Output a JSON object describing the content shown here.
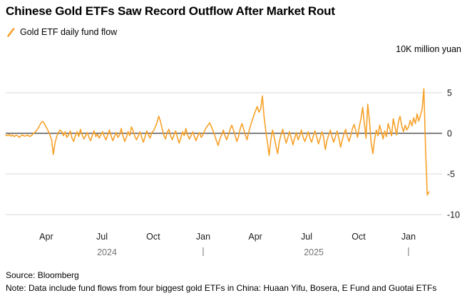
{
  "title": "Chinese Gold ETFs Saw Record Outflow After Market Rout",
  "legend": {
    "label": "Gold ETF daily fund flow"
  },
  "y_axis": {
    "unit": "10K million yuan"
  },
  "footer": {
    "source": "Source: Bloomberg",
    "note": "Note: Data include fund flows from four biggest gold ETFs in China: Huaan Yifu, Bosera, E Fund and Guotai ETFs"
  },
  "colors": {
    "line": "#F7A128",
    "grid": "#D8D8D8",
    "zero": "#000000",
    "text": "#1a1a1a",
    "year": "#737373"
  },
  "chart_data": {
    "type": "line",
    "title": "Chinese Gold ETFs Saw Record Outflow After Market Rout",
    "series_name": "Gold ETF daily fund flow",
    "unit": "10K million yuan",
    "ylim": [
      -10,
      5
    ],
    "yticks": [
      5,
      0,
      -5,
      -10
    ],
    "x_range": [
      "Feb 2024",
      "Feb 2026"
    ],
    "x_ticks": [
      {
        "label": "Apr",
        "f": 0.093
      },
      {
        "label": "Jul",
        "f": 0.2206
      },
      {
        "label": "Oct",
        "f": 0.338
      },
      {
        "label": "Jan",
        "f": 0.4526
      },
      {
        "label": "Apr",
        "f": 0.572
      },
      {
        "label": "Jul",
        "f": 0.6895
      },
      {
        "label": "Oct",
        "f": 0.8088
      },
      {
        "label": "Jan",
        "f": 0.9232
      }
    ],
    "year_labels": [
      {
        "label": "2024",
        "f": 0.232
      },
      {
        "label": "2025",
        "f": 0.706
      }
    ],
    "year_dividers_f": [
      0.4526,
      0.9232
    ],
    "series_end_f": 0.97,
    "values": [
      -0.2,
      -0.3,
      -0.15,
      -0.35,
      -0.2,
      -0.4,
      -0.25,
      -0.3,
      -0.5,
      -0.3,
      -0.2,
      -0.35,
      -0.3,
      -0.2,
      -0.4,
      -0.3,
      -0.1,
      0.1,
      0.3,
      0.6,
      1.0,
      1.35,
      1.45,
      1.1,
      0.7,
      0.3,
      -0.2,
      -0.8,
      -2.6,
      -1.2,
      -0.4,
      0.1,
      0.4,
      0.2,
      -0.3,
      0.2,
      -0.5,
      -0.2,
      0.3,
      -0.6,
      -1.0,
      -0.3,
      0.2,
      -0.4,
      0.5,
      -0.2,
      -0.7,
      -0.3,
      0.1,
      -0.5,
      -0.9,
      -0.2,
      0.3,
      -0.4,
      -0.1,
      -0.6,
      -0.2,
      0.2,
      -0.4,
      -0.8,
      -0.2,
      0.4,
      -0.3,
      -0.9,
      -0.4,
      0.1,
      -0.5,
      -0.2,
      0.6,
      -0.3,
      -1.0,
      -0.5,
      0.2,
      -0.3,
      0.8,
      0.3,
      -0.4,
      -0.8,
      -0.3,
      0.2,
      -0.5,
      -1.1,
      -0.4,
      0.3,
      -0.2,
      -0.6,
      0.1,
      0.3,
      0.8,
      1.3,
      2.1,
      1.5,
      0.6,
      -0.2,
      -0.7,
      0.1,
      0.5,
      -0.3,
      -0.8,
      -0.2,
      0.3,
      -0.5,
      -1.2,
      -0.6,
      0.2,
      -0.3,
      0.6,
      -0.2,
      -0.7,
      -0.3,
      0.2,
      -0.4,
      -0.9,
      -0.3,
      0.1,
      -0.5,
      -0.2,
      0.3,
      0.7,
      1.0,
      1.3,
      0.8,
      0.3,
      -0.3,
      -0.9,
      -1.5,
      -0.7,
      -0.2,
      0.4,
      -0.3,
      -0.8,
      -0.2,
      0.5,
      1.0,
      0.4,
      -0.3,
      -1.0,
      -0.4,
      0.6,
      1.2,
      0.5,
      -0.2,
      -0.8,
      0.2,
      0.9,
      1.6,
      2.2,
      2.8,
      3.3,
      2.6,
      3.0,
      4.6,
      2.0,
      0.3,
      -1.2,
      -2.7,
      -0.8,
      0.4,
      -0.5,
      -1.6,
      -2.5,
      -1.0,
      -0.2,
      0.5,
      -0.4,
      -1.2,
      -0.5,
      0.2,
      -0.6,
      -1.4,
      -0.6,
      0.1,
      -0.8,
      -0.3,
      0.4,
      -0.5,
      -1.0,
      -0.4,
      0.2,
      -0.6,
      -1.1,
      -0.3,
      0.3,
      -0.5,
      -1.3,
      -0.6,
      0.2,
      -0.4,
      -2.0,
      -0.9,
      -0.2,
      0.4,
      -0.5,
      -1.1,
      -0.4,
      0.3,
      -0.6,
      -1.7,
      -0.8,
      -0.1,
      0.5,
      -0.4,
      -1.0,
      -0.3,
      0.6,
      1.1,
      0.3,
      -0.5,
      0.8,
      1.8,
      3.2,
      1.2,
      -0.6,
      3.6,
      1.5,
      -1.2,
      -2.5,
      -0.8,
      0.4,
      -0.3,
      1.0,
      0.2,
      -0.7,
      0.3,
      -0.4,
      1.2,
      0.5,
      -0.3,
      1.8,
      0.8,
      -0.2,
      1.4,
      2.1,
      0.9,
      0.2,
      1.0,
      0.4,
      0.8,
      1.6,
      0.9,
      1.9,
      1.2,
      2.4,
      1.5,
      2.2,
      3.0,
      5.5,
      -2.0,
      -7.6,
      -7.2
    ]
  }
}
